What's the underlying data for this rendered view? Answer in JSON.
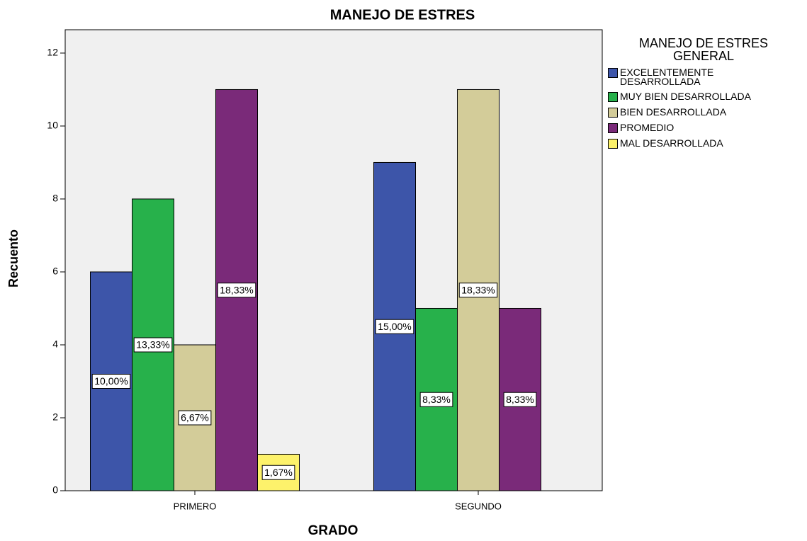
{
  "chart_data": {
    "type": "bar",
    "title": "MANEJO DE ESTRES",
    "x_label": "GRADO",
    "y_label": "Recuento",
    "legend_title": "MANEJO DE ESTRES GENERAL",
    "categories": [
      "PRIMERO",
      "SEGUNDO"
    ],
    "series": [
      {
        "name": "EXCELENTEMENTE DESARROLLADA",
        "color": "#3d55a9",
        "values": [
          6,
          9
        ],
        "value_labels": [
          "10,00%",
          "15,00%"
        ]
      },
      {
        "name": "MUY BIEN DESARROLLADA",
        "color": "#27b14b",
        "values": [
          8,
          5
        ],
        "value_labels": [
          "13,33%",
          "8,33%"
        ]
      },
      {
        "name": "BIEN DESARROLLADA",
        "color": "#d3cc99",
        "values": [
          4,
          11
        ],
        "value_labels": [
          "6,67%",
          "18,33%"
        ]
      },
      {
        "name": "PROMEDIO",
        "color": "#7a2a79",
        "values": [
          11,
          5
        ],
        "value_labels": [
          "18,33%",
          "8,33%"
        ]
      },
      {
        "name": "MAL DESARROLLADA",
        "color": "#fdf26b",
        "values": [
          1,
          null
        ],
        "value_labels": [
          "1,67%",
          null
        ]
      }
    ],
    "ylim": [
      0,
      12.64
    ],
    "yticks": [
      0,
      2,
      4,
      6,
      8,
      10,
      12
    ],
    "legend_position": "right"
  }
}
